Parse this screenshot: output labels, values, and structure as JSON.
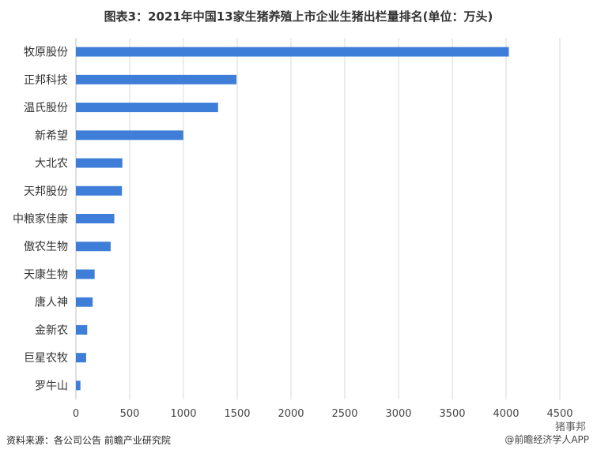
{
  "chart_data": {
    "type": "bar",
    "orientation": "horizontal",
    "title": "图表3：2021年中国13家生猪养殖上市企业生猪出栏量排名(单位：万头)",
    "xlabel": "",
    "ylabel": "",
    "categories": [
      "牧原股份",
      "正邦科技",
      "温氏股份",
      "新希望",
      "大北农",
      "天邦股份",
      "中粮家佳康",
      "傲农生物",
      "天康生物",
      "唐人神",
      "金新农",
      "巨星农牧",
      "罗牛山"
    ],
    "values": [
      4026,
      1493,
      1322,
      998,
      432,
      428,
      357,
      323,
      174,
      156,
      105,
      95,
      42
    ],
    "xlim": [
      0,
      4500
    ],
    "x_ticks": [
      "0",
      "500",
      "1000",
      "1500",
      "2000",
      "2500",
      "3000",
      "3500",
      "4000",
      "4500"
    ],
    "grid": "vertical",
    "legend": "none",
    "bar_color": "#3e7ed8",
    "grid_color": "#d9d9d9"
  },
  "source": "资料来源：各公司公告 前瞻产业研究院",
  "brand_channel": "猪事邦",
  "brand": "@前瞻经济学人APP"
}
